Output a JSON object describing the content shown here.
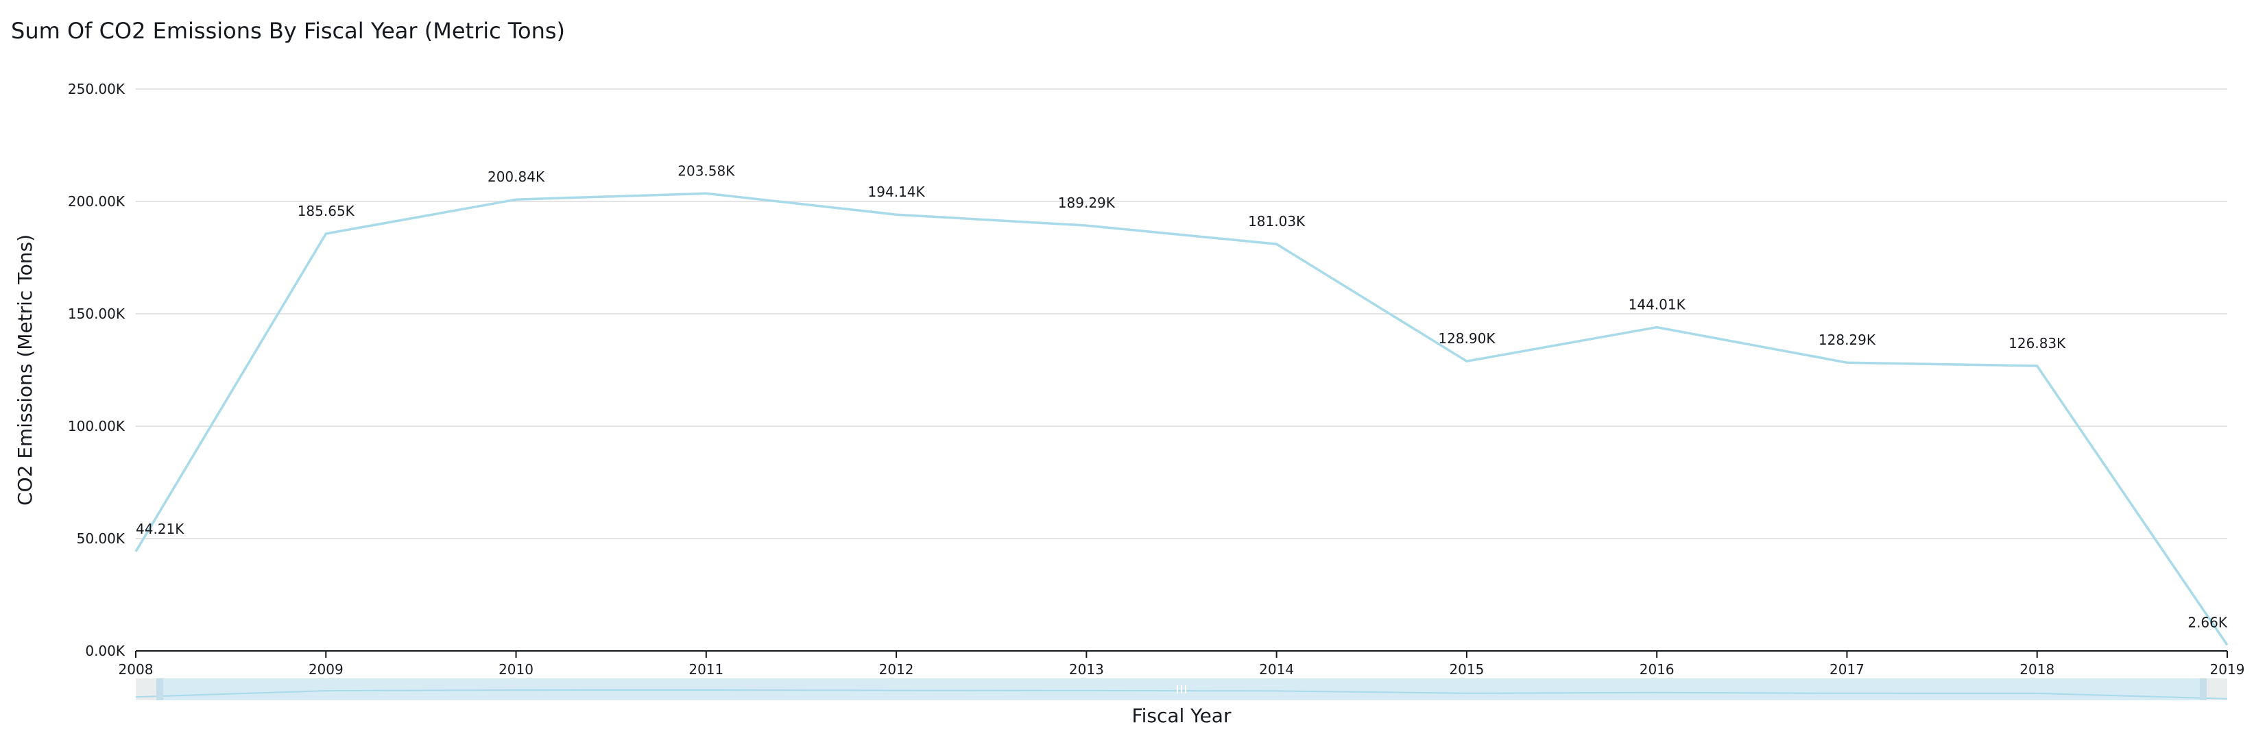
{
  "chart_data": {
    "type": "line",
    "title": "Sum Of CO2 Emissions By Fiscal Year (Metric Tons)",
    "xlabel": "Fiscal Year",
    "ylabel": "CO2 Emissions (Metric Tons)",
    "x": [
      2008,
      2009,
      2010,
      2011,
      2012,
      2013,
      2014,
      2015,
      2016,
      2017,
      2018,
      2019
    ],
    "series": [
      {
        "values": [
          44210,
          185650,
          200840,
          203580,
          194140,
          189290,
          181030,
          128900,
          144010,
          128290,
          126830,
          2660
        ],
        "data_labels": [
          "44.21K",
          "185.65K",
          "200.84K",
          "203.58K",
          "194.14K",
          "189.29K",
          "181.03K",
          "128.90K",
          "144.01K",
          "128.29K",
          "126.83K",
          "2.66K"
        ],
        "color": "#a8daea"
      }
    ],
    "ylim": [
      0,
      250000
    ],
    "y_ticks": [
      0,
      50000,
      100000,
      150000,
      200000,
      250000
    ],
    "y_tick_labels": [
      "0.00K",
      "50.00K",
      "100.00K",
      "150.00K",
      "200.00K",
      "250.00K"
    ],
    "x_tick_labels": [
      "2008",
      "2009",
      "2010",
      "2011",
      "2012",
      "2013",
      "2014",
      "2015",
      "2016",
      "2017",
      "2018",
      "2019"
    ],
    "grid": true,
    "legend": "none",
    "range_slider": true
  },
  "colors": {
    "line": "#a8daea",
    "grid": "#dcdcdc",
    "axis": "#16191f",
    "slider_track": "#d7ebf4",
    "slider_edge": "#eaeded"
  }
}
